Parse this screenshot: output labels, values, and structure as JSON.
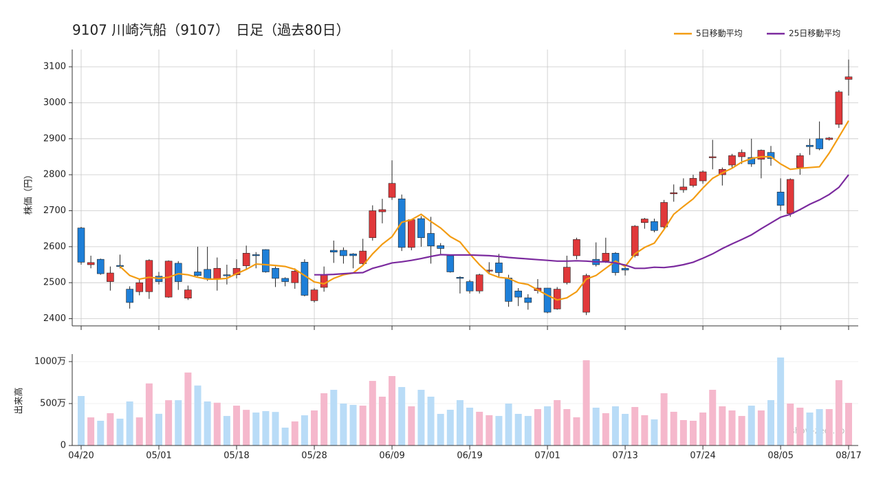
{
  "chart_data": {
    "type": "candlestick",
    "title": "9107 川崎汽船（9107）　日足（過去80日）",
    "ylabel": "株価（円）",
    "watermark": "show-zeet.com",
    "categories": [
      "04/20",
      null,
      null,
      null,
      null,
      null,
      null,
      null,
      "05/01",
      null,
      null,
      null,
      null,
      null,
      null,
      null,
      "05/18",
      null,
      null,
      null,
      null,
      null,
      null,
      null,
      "05/28",
      null,
      null,
      null,
      null,
      null,
      null,
      null,
      "06/09",
      null,
      null,
      null,
      null,
      null,
      null,
      null,
      "06/19",
      null,
      null,
      null,
      null,
      null,
      null,
      null,
      "07/01",
      null,
      null,
      null,
      null,
      null,
      null,
      null,
      "07/13",
      null,
      null,
      null,
      null,
      null,
      null,
      null,
      "07/24",
      null,
      null,
      null,
      null,
      null,
      null,
      null,
      "08/05",
      null,
      null,
      null,
      null,
      null,
      null,
      "08/17"
    ],
    "open": [
      2652,
      2550,
      2565,
      2503,
      2548,
      2482,
      2475,
      2475,
      2518,
      2460,
      2554,
      2457,
      2530,
      2537,
      2510,
      2522,
      2522,
      2547,
      2578,
      2592,
      2540,
      2512,
      2500,
      2557,
      2450,
      2487,
      2590,
      2590,
      2580,
      2553,
      2625,
      2697,
      2737,
      2733,
      2598,
      2678,
      2637,
      2603,
      2575,
      2515,
      2503,
      2477,
      2533,
      2555,
      2513,
      2477,
      2458,
      2478,
      2485,
      2427,
      2500,
      2575,
      2418,
      2565,
      2560,
      2582,
      2540,
      2575,
      2667,
      2670,
      2655,
      2747,
      2758,
      2770,
      2783,
      2848,
      2800,
      2827,
      2850,
      2848,
      2843,
      2862,
      2752,
      2692,
      2820,
      2882,
      2900,
      2898,
      2940,
      3065
    ],
    "high": [
      2655,
      2575,
      2567,
      2545,
      2578,
      2490,
      2510,
      2565,
      2530,
      2562,
      2560,
      2492,
      2600,
      2600,
      2570,
      2550,
      2565,
      2603,
      2585,
      2593,
      2545,
      2515,
      2540,
      2565,
      2485,
      2545,
      2617,
      2598,
      2582,
      2622,
      2715,
      2733,
      2840,
      2745,
      2675,
      2685,
      2683,
      2610,
      2578,
      2518,
      2508,
      2525,
      2557,
      2580,
      2522,
      2485,
      2468,
      2510,
      2485,
      2488,
      2575,
      2625,
      2525,
      2612,
      2625,
      2585,
      2545,
      2660,
      2680,
      2678,
      2730,
      2773,
      2790,
      2800,
      2812,
      2897,
      2820,
      2858,
      2870,
      2900,
      2870,
      2880,
      2790,
      2790,
      2860,
      2900,
      2948,
      2905,
      3035,
      3120
    ],
    "low": [
      2550,
      2540,
      2522,
      2478,
      2540,
      2428,
      2465,
      2455,
      2495,
      2458,
      2480,
      2452,
      2518,
      2505,
      2478,
      2495,
      2512,
      2535,
      2540,
      2528,
      2488,
      2490,
      2483,
      2462,
      2445,
      2475,
      2555,
      2553,
      2540,
      2550,
      2617,
      2665,
      2730,
      2588,
      2590,
      2600,
      2553,
      2580,
      2528,
      2470,
      2470,
      2470,
      2525,
      2517,
      2433,
      2435,
      2425,
      2470,
      2415,
      2425,
      2495,
      2565,
      2410,
      2545,
      2555,
      2520,
      2520,
      2570,
      2650,
      2640,
      2650,
      2725,
      2750,
      2765,
      2775,
      2815,
      2770,
      2817,
      2830,
      2822,
      2790,
      2825,
      2700,
      2683,
      2800,
      2855,
      2868,
      2895,
      2930,
      3020
    ],
    "close": [
      2557,
      2556,
      2525,
      2527,
      2545,
      2445,
      2500,
      2562,
      2503,
      2560,
      2503,
      2480,
      2520,
      2510,
      2540,
      2520,
      2540,
      2582,
      2575,
      2530,
      2512,
      2503,
      2532,
      2465,
      2480,
      2522,
      2585,
      2575,
      2575,
      2588,
      2700,
      2703,
      2776,
      2598,
      2675,
      2625,
      2602,
      2595,
      2530,
      2512,
      2477,
      2522,
      2535,
      2528,
      2448,
      2460,
      2445,
      2485,
      2418,
      2482,
      2543,
      2620,
      2520,
      2550,
      2582,
      2528,
      2535,
      2657,
      2677,
      2645,
      2723,
      2750,
      2766,
      2790,
      2808,
      2850,
      2815,
      2853,
      2862,
      2830,
      2868,
      2845,
      2715,
      2787,
      2853,
      2878,
      2872,
      2902,
      3030,
      3072
    ],
    "up_color": "#e0383a",
    "down_color": "#1e7fd8",
    "series": [
      {
        "name": "5日移動平均",
        "color": "#f39c12",
        "values": [
          null,
          null,
          null,
          null,
          2545,
          2520,
          2510,
          2515,
          2512,
          2515,
          2525,
          2522,
          2515,
          2510,
          2510,
          2512,
          2525,
          2537,
          2552,
          2550,
          2548,
          2545,
          2537,
          2520,
          2502,
          2497,
          2512,
          2522,
          2527,
          2548,
          2580,
          2607,
          2628,
          2668,
          2675,
          2690,
          2670,
          2652,
          2628,
          2613,
          2580,
          2550,
          2525,
          2515,
          2512,
          2500,
          2495,
          2480,
          2465,
          2452,
          2458,
          2475,
          2510,
          2520,
          2540,
          2560,
          2545,
          2580,
          2598,
          2610,
          2648,
          2690,
          2712,
          2733,
          2763,
          2790,
          2805,
          2818,
          2835,
          2845,
          2850,
          2850,
          2830,
          2815,
          2818,
          2820,
          2822,
          2860,
          2905,
          2950
        ]
      },
      {
        "name": "25日移動平均",
        "color": "#7b2a9e",
        "values": [
          null,
          null,
          null,
          null,
          null,
          null,
          null,
          null,
          null,
          null,
          null,
          null,
          null,
          null,
          null,
          null,
          null,
          null,
          null,
          null,
          null,
          null,
          null,
          null,
          2522,
          2522,
          2523,
          2525,
          2527,
          2528,
          2540,
          2547,
          2555,
          2558,
          2562,
          2567,
          2573,
          2578,
          2577,
          2577,
          2577,
          2576,
          2575,
          2573,
          2570,
          2568,
          2566,
          2564,
          2562,
          2560,
          2560,
          2561,
          2560,
          2558,
          2558,
          2555,
          2549,
          2540,
          2540,
          2543,
          2542,
          2545,
          2550,
          2557,
          2568,
          2580,
          2595,
          2608,
          2620,
          2633,
          2650,
          2666,
          2682,
          2690,
          2703,
          2718,
          2730,
          2745,
          2765,
          2800
        ]
      }
    ],
    "ylim": [
      2380,
      3148
    ],
    "yticks": [
      2400,
      2500,
      2600,
      2700,
      2800,
      2900,
      3000,
      3100
    ],
    "grid": true,
    "volume": {
      "ylabel": "出来高",
      "up_color": "#f5b8cc",
      "down_color": "#b9dcf7",
      "values": [
        590,
        335,
        295,
        385,
        320,
        525,
        335,
        740,
        378,
        540,
        540,
        870,
        715,
        525,
        510,
        352,
        475,
        425,
        393,
        410,
        400,
        213,
        287,
        360,
        418,
        623,
        664,
        500,
        484,
        475,
        770,
        582,
        828,
        697,
        467,
        664,
        582,
        377,
        426,
        541,
        451,
        402,
        361,
        352,
        500,
        377,
        352,
        434,
        467,
        541,
        434,
        336,
        1016,
        451,
        385,
        467,
        377,
        459,
        361,
        311,
        623,
        402,
        303,
        295,
        393,
        664,
        467,
        418,
        352,
        475,
        418,
        541,
        1049,
        500,
        451,
        393,
        434,
        434,
        779,
        508
      ],
      "ylim": [
        0,
        1090
      ],
      "yticks": [
        0,
        {
          "value": 500,
          "label": "500万"
        },
        {
          "value": 1000,
          "label": "1000万"
        }
      ]
    }
  }
}
